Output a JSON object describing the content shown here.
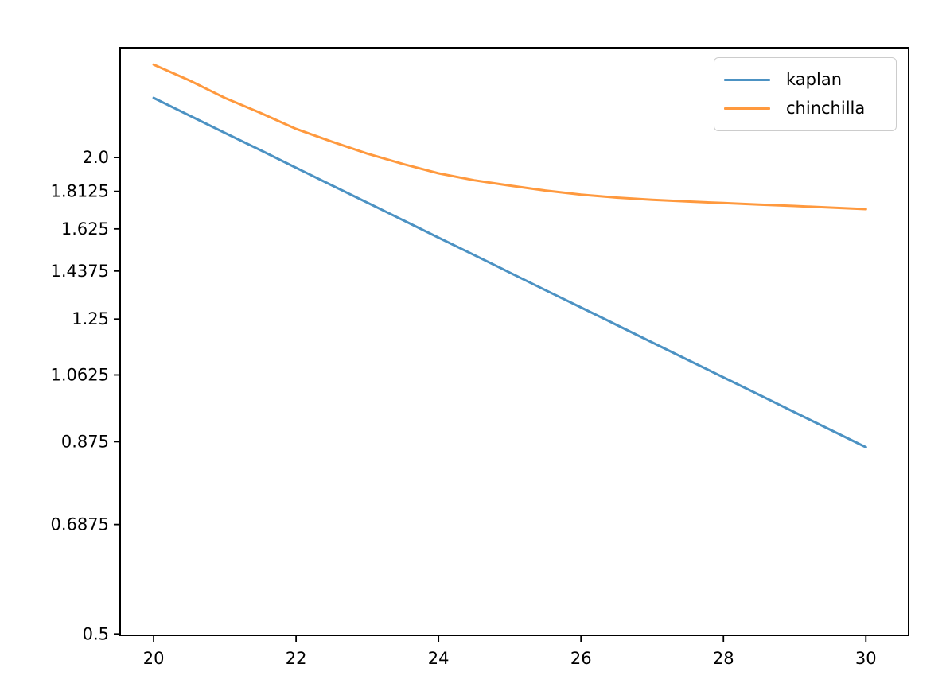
{
  "chart_data": {
    "type": "line",
    "title": "",
    "xlabel": "",
    "ylabel": "",
    "xscale": "linear",
    "yscale": "log",
    "xlim": [
      19.53,
      30.6
    ],
    "ylim": [
      0.498,
      2.753
    ],
    "grid": false,
    "legend_position": "upper right",
    "xticks": {
      "values": [
        20,
        22,
        24,
        26,
        28,
        30
      ],
      "labels": [
        "20",
        "22",
        "24",
        "26",
        "28",
        "30"
      ]
    },
    "yticks": {
      "values": [
        2.0,
        1.8125,
        1.625,
        1.4375,
        1.25,
        1.0625,
        0.875,
        0.6875,
        0.5
      ],
      "labels": [
        "2.0",
        "1.8125",
        "1.625",
        "1.4375",
        "1.25",
        "1.0625",
        "0.875",
        "0.6875",
        "0.5"
      ]
    },
    "x": [
      20,
      20.5,
      21,
      21.5,
      22,
      22.5,
      23,
      23.5,
      24,
      24.5,
      25,
      25.5,
      26,
      26.5,
      27,
      27.5,
      28,
      28.5,
      29,
      29.5,
      30
    ],
    "series": [
      {
        "name": "kaplan",
        "color": "#1f77b4",
        "alpha": 0.8,
        "values": [
          2.379,
          2.261,
          2.149,
          2.043,
          1.941,
          1.845,
          1.754,
          1.667,
          1.584,
          1.506,
          1.431,
          1.36,
          1.293,
          1.229,
          1.168,
          1.11,
          1.055,
          1.003,
          0.953,
          0.906,
          0.861
        ]
      },
      {
        "name": "chinchilla",
        "color": "#ff7f0e",
        "alpha": 0.8,
        "values": [
          2.621,
          2.504,
          2.379,
          2.277,
          2.174,
          2.095,
          2.023,
          1.963,
          1.91,
          1.872,
          1.843,
          1.817,
          1.795,
          1.78,
          1.769,
          1.76,
          1.752,
          1.744,
          1.737,
          1.729,
          1.721
        ]
      }
    ]
  }
}
